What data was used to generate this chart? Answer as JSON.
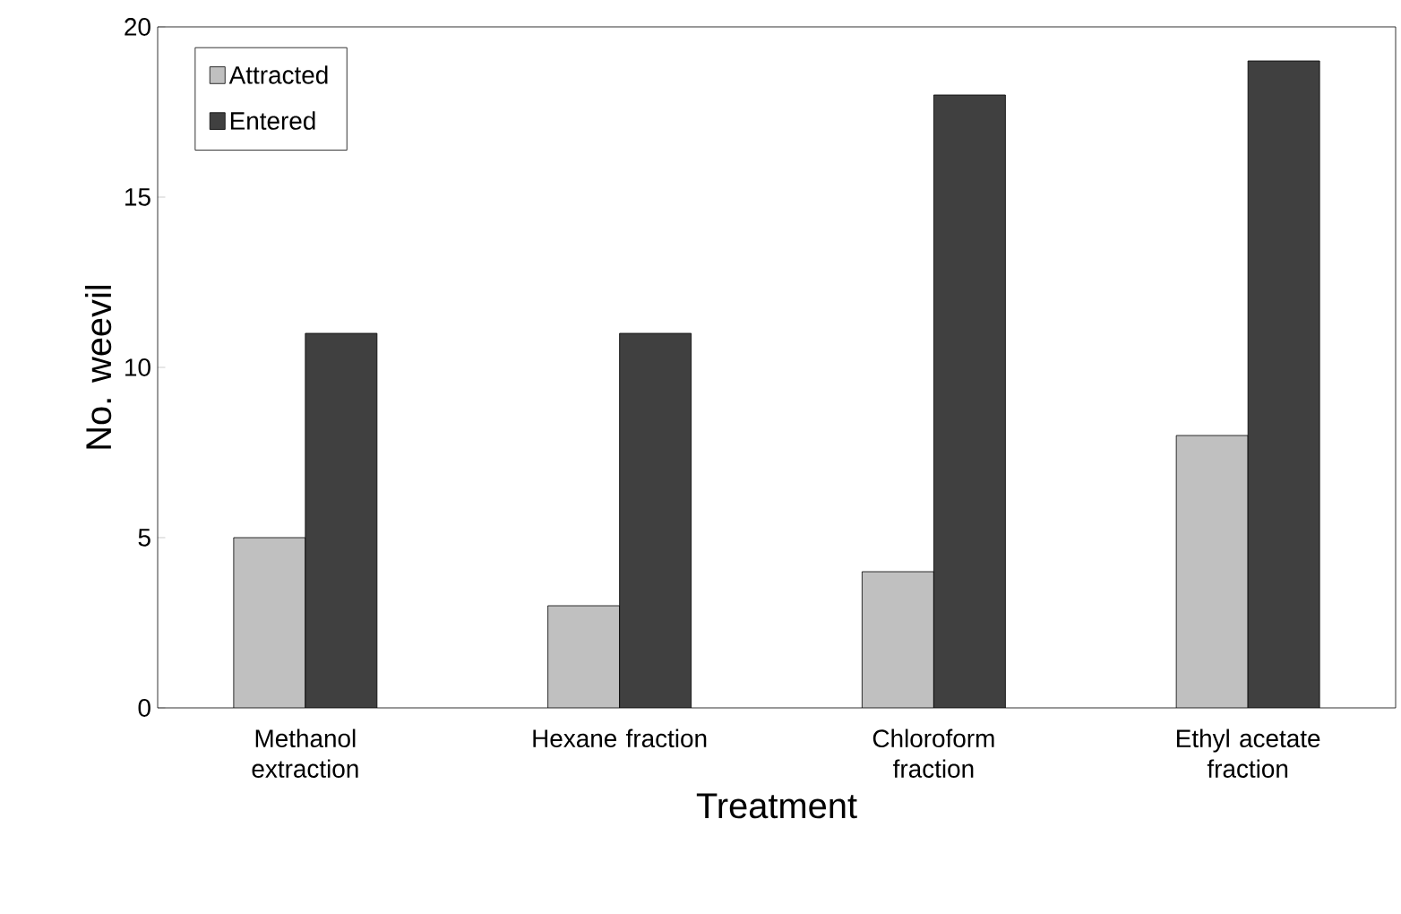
{
  "chart_data": {
    "type": "bar",
    "xlabel": "Treatment",
    "ylabel": "No. weevil",
    "categories": [
      "Methanol extraction",
      "Hexane fraction",
      "Chloroform fraction",
      "Ethyl acetate fraction"
    ],
    "series": [
      {
        "name": "Attracted",
        "color": "#c0c0c0",
        "values": [
          5,
          3,
          4,
          8
        ]
      },
      {
        "name": "Entered",
        "color": "#404040",
        "values": [
          11,
          11,
          18,
          19
        ]
      }
    ],
    "ylim": [
      0,
      20
    ],
    "yticks": [
      0,
      5,
      10,
      15,
      20
    ],
    "legend": "top left"
  }
}
